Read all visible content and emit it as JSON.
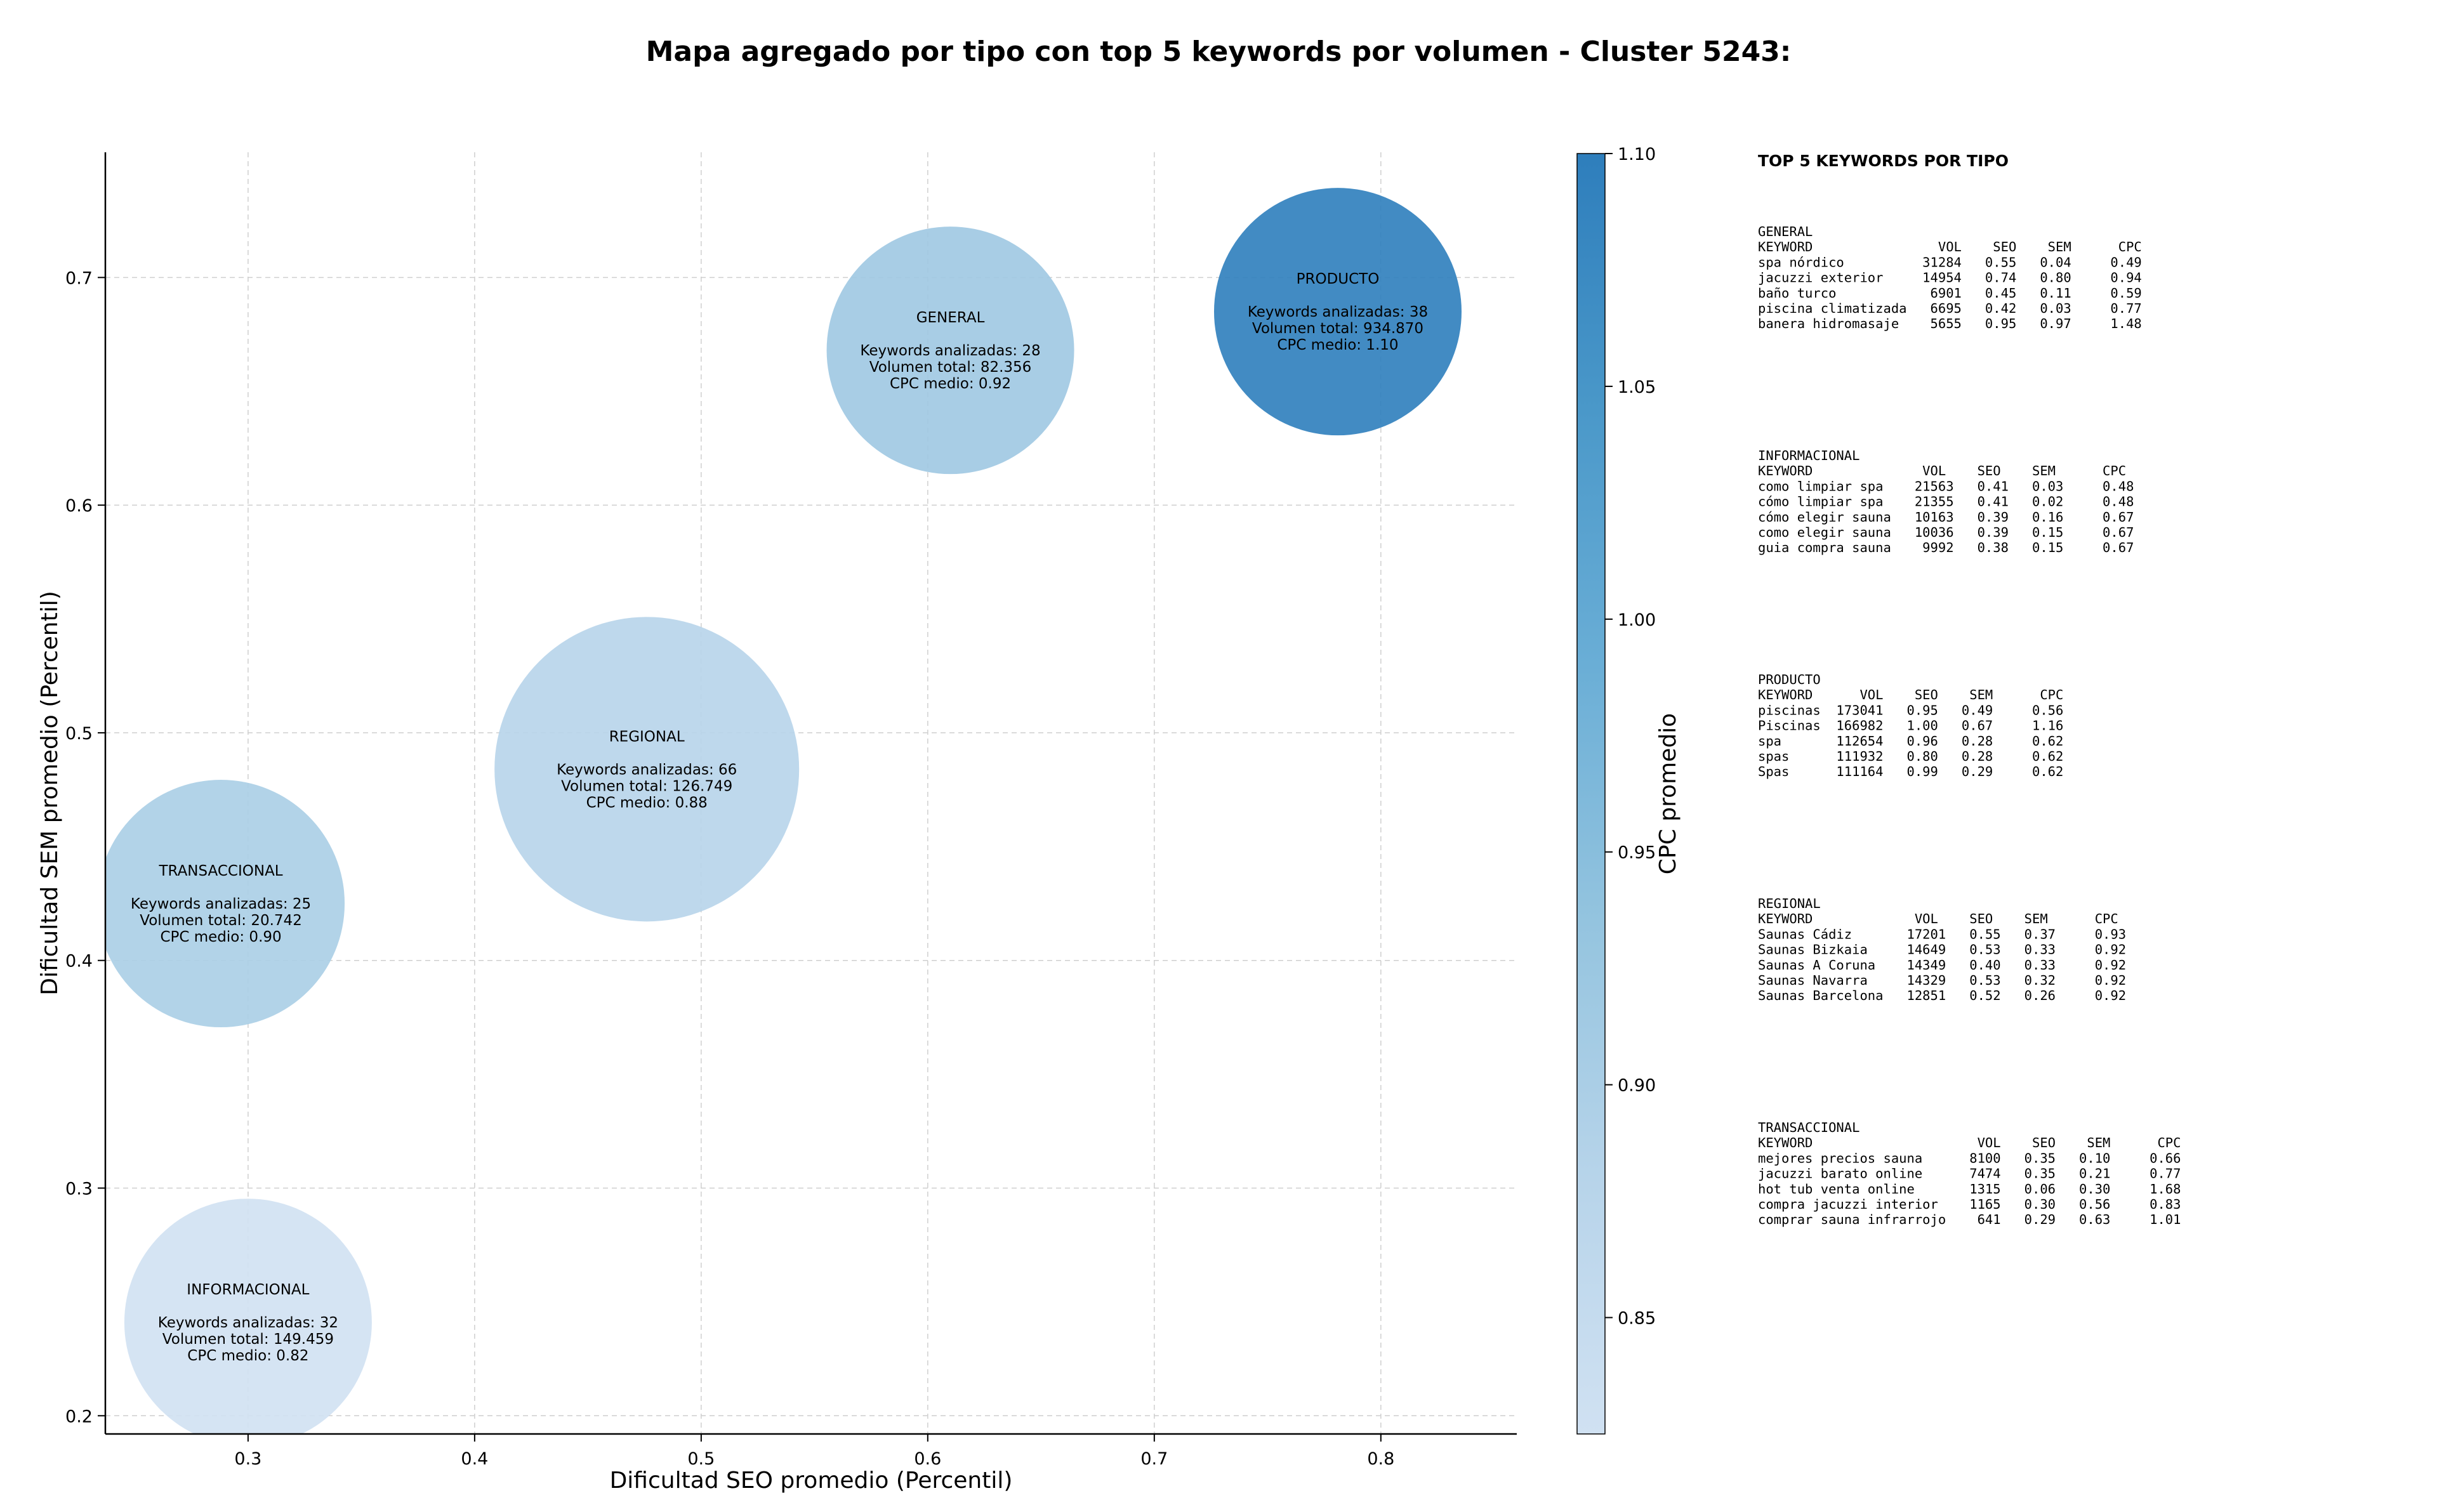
{
  "chart_data": {
    "type": "scatter",
    "title": "Mapa agregado por tipo con top 5 keywords por volumen - Cluster 5243:",
    "xlabel": "Dificultad SEO promedio (Percentil)",
    "ylabel": "Dificultad SEM promedio (Percentil)",
    "xlim": [
      0.237,
      0.86
    ],
    "ylim": [
      0.192,
      0.755
    ],
    "xticks": [
      0.3,
      0.4,
      0.5,
      0.6,
      0.7,
      0.8
    ],
    "yticks": [
      0.2,
      0.3,
      0.4,
      0.5,
      0.6,
      0.7
    ],
    "xtick_labels": [
      "0.3",
      "0.4",
      "0.5",
      "0.6",
      "0.7",
      "0.8"
    ],
    "ytick_labels": [
      "0.2",
      "0.3",
      "0.4",
      "0.5",
      "0.6",
      "0.7"
    ],
    "grid": true,
    "colorbar": {
      "label": "CPC promedio",
      "min": 0.825,
      "max": 1.1,
      "ticks": [
        0.85,
        0.9,
        0.95,
        1.0,
        1.05,
        1.1
      ],
      "tick_labels": [
        "0.85",
        "0.90",
        "0.95",
        "1.00",
        "1.05",
        "1.10"
      ],
      "colors": [
        "#d0e1f2",
        "#b7d4ea",
        "#94c4df",
        "#6aaed6",
        "#4a98c9",
        "#2e7ebc"
      ]
    },
    "points": [
      {
        "name": "GENERAL",
        "seo": 0.61,
        "sem": 0.668,
        "cpc": 0.92,
        "keywords": 28,
        "volume": 82356,
        "label_lines": [
          "GENERAL",
          "",
          "Keywords analizadas: 28",
          "Volumen total: 82.356",
          "CPC medio: 0.92"
        ]
      },
      {
        "name": "PRODUCTO",
        "seo": 0.781,
        "sem": 0.685,
        "cpc": 1.1,
        "keywords": 38,
        "volume": 934870,
        "label_lines": [
          "PRODUCTO",
          "",
          "Keywords analizadas: 38",
          "Volumen total: 934.870",
          "CPC medio: 1.10"
        ]
      },
      {
        "name": "REGIONAL",
        "seo": 0.476,
        "sem": 0.484,
        "cpc": 0.88,
        "keywords": 66,
        "volume": 126749,
        "label_lines": [
          "REGIONAL",
          "",
          "Keywords analizadas: 66",
          "Volumen total: 126.749",
          "CPC medio: 0.88"
        ]
      },
      {
        "name": "TRANSACCIONAL",
        "seo": 0.288,
        "sem": 0.425,
        "cpc": 0.9,
        "keywords": 25,
        "volume": 20742,
        "label_lines": [
          "TRANSACCIONAL",
          "",
          "Keywords analizadas: 25",
          "Volumen total: 20.742",
          "CPC medio: 0.90"
        ]
      },
      {
        "name": "INFORMACIONAL",
        "seo": 0.3,
        "sem": 0.241,
        "cpc": 0.82,
        "keywords": 32,
        "volume": 149459,
        "label_lines": [
          "INFORMACIONAL",
          "",
          "Keywords analizadas: 32",
          "Volumen total: 149.459",
          "CPC medio: 0.82"
        ]
      }
    ]
  },
  "side_panel": {
    "heading": "TOP 5 KEYWORDS POR TIPO",
    "blocks": [
      {
        "lines": [
          "GENERAL",
          "KEYWORD                VOL    SEO    SEM      CPC",
          "spa nórdico          31284   0.55   0.04     0.49",
          "jacuzzi exterior     14954   0.74   0.80     0.94",
          "baño turco            6901   0.45   0.11     0.59",
          "piscina climatizada   6695   0.42   0.03     0.77",
          "banera hidromasaje    5655   0.95   0.97     1.48"
        ]
      },
      {
        "lines": [
          "INFORMACIONAL",
          "KEYWORD              VOL    SEO    SEM      CPC",
          "como limpiar spa    21563   0.41   0.03     0.48",
          "cómo limpiar spa    21355   0.41   0.02     0.48",
          "cómo elegir sauna   10163   0.39   0.16     0.67",
          "como elegir sauna   10036   0.39   0.15     0.67",
          "guia compra sauna    9992   0.38   0.15     0.67"
        ]
      },
      {
        "lines": [
          "PRODUCTO",
          "KEYWORD      VOL    SEO    SEM      CPC",
          "piscinas  173041   0.95   0.49     0.56",
          "Piscinas  166982   1.00   0.67     1.16",
          "spa       112654   0.96   0.28     0.62",
          "spas      111932   0.80   0.28     0.62",
          "Spas      111164   0.99   0.29     0.62"
        ]
      },
      {
        "lines": [
          "REGIONAL",
          "KEYWORD             VOL    SEO    SEM      CPC",
          "Saunas Cádiz       17201   0.55   0.37     0.93",
          "Saunas Bizkaia     14649   0.53   0.33     0.92",
          "Saunas A Coruna    14349   0.40   0.33     0.92",
          "Saunas Navarra     14329   0.53   0.32     0.92",
          "Saunas Barcelona   12851   0.52   0.26     0.92"
        ]
      },
      {
        "lines": [
          "TRANSACCIONAL",
          "KEYWORD                     VOL    SEO    SEM      CPC",
          "mejores precios sauna      8100   0.35   0.10     0.66",
          "jacuzzi barato online      7474   0.35   0.21     0.77",
          "hot tub venta online       1315   0.06   0.30     1.68",
          "compra jacuzzi interior    1165   0.30   0.56     0.83",
          "comprar sauna infrarrojo    641   0.29   0.63     1.01"
        ]
      }
    ]
  }
}
